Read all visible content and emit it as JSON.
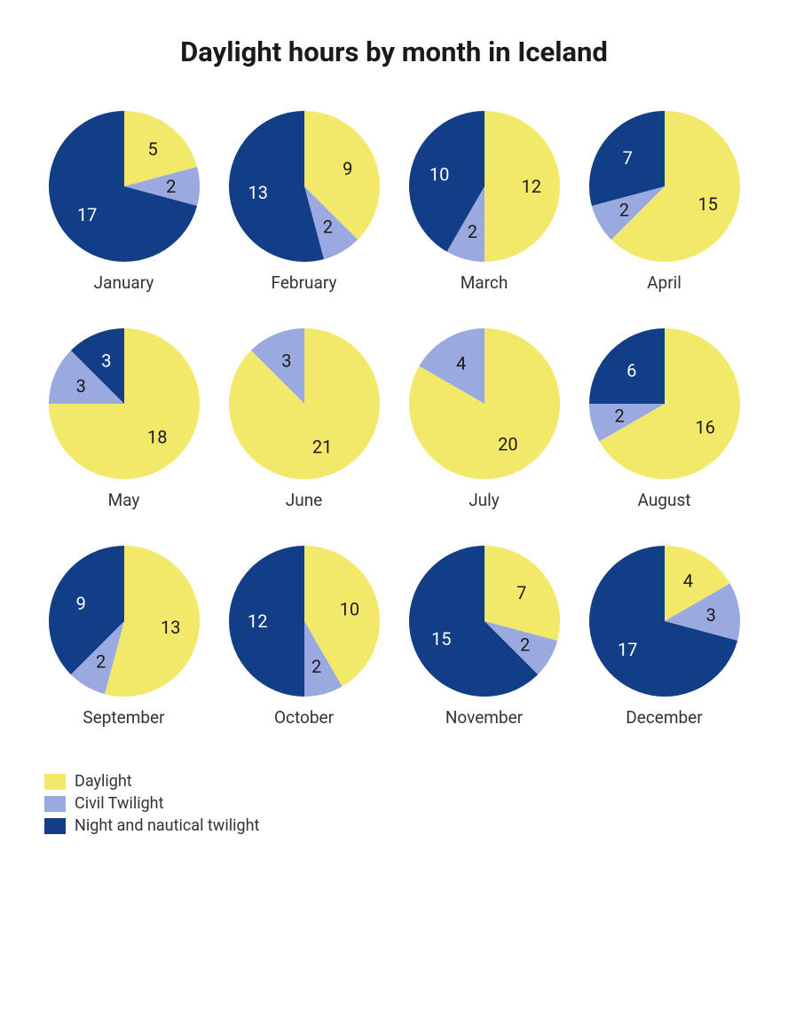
{
  "title": "Daylight hours by month in Iceland",
  "title_fontsize": 31,
  "background_color": "#ffffff",
  "pie_radius": 85,
  "label_distance_ratio": 0.62,
  "value_fontsize": 20,
  "month_fontsize": 19,
  "legend_fontsize": 18,
  "series": [
    {
      "key": "daylight",
      "label": "Daylight",
      "color": "#f2e96b"
    },
    {
      "key": "civil",
      "label": "Civil Twilight",
      "color": "#9aa9e0"
    },
    {
      "key": "night",
      "label": "Night and nautical twilight",
      "color": "#123e87"
    }
  ],
  "text_color_on_light": "#1a1a1a",
  "text_color_on_dark": "#ffffff",
  "months": [
    {
      "name": "January",
      "daylight": 5,
      "civil": 2,
      "night": 17
    },
    {
      "name": "February",
      "daylight": 9,
      "civil": 2,
      "night": 13
    },
    {
      "name": "March",
      "daylight": 12,
      "civil": 2,
      "night": 10
    },
    {
      "name": "April",
      "daylight": 15,
      "civil": 2,
      "night": 7
    },
    {
      "name": "May",
      "daylight": 18,
      "civil": 3,
      "night": 3
    },
    {
      "name": "June",
      "daylight": 21,
      "civil": 3,
      "night": 0
    },
    {
      "name": "July",
      "daylight": 20,
      "civil": 4,
      "night": 0
    },
    {
      "name": "August",
      "daylight": 16,
      "civil": 2,
      "night": 6
    },
    {
      "name": "September",
      "daylight": 13,
      "civil": 2,
      "night": 9
    },
    {
      "name": "October",
      "daylight": 10,
      "civil": 2,
      "night": 12
    },
    {
      "name": "November",
      "daylight": 7,
      "civil": 2,
      "night": 15
    },
    {
      "name": "December",
      "daylight": 4,
      "civil": 3,
      "night": 17
    }
  ]
}
